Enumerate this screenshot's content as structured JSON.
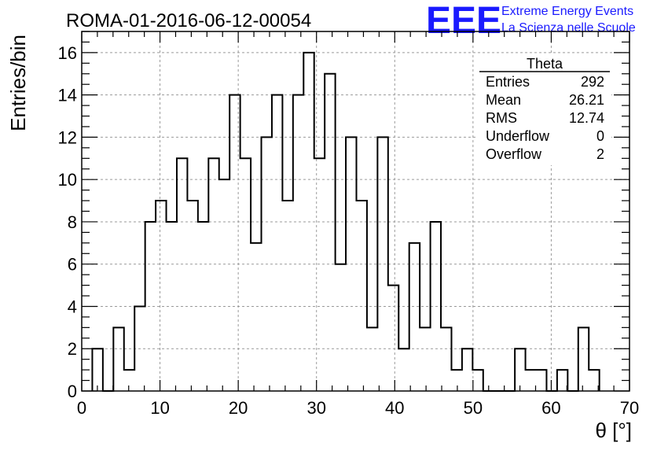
{
  "header": {
    "title": "ROMA-01-2016-06-12-00054",
    "logo": "EEE",
    "logo_line1": "Extreme Energy Events",
    "logo_line2": "La Scienza nelle Scuole"
  },
  "stats": {
    "title": "Theta",
    "rows": [
      {
        "label": "Entries",
        "value": "292"
      },
      {
        "label": "Mean",
        "value": "26.21"
      },
      {
        "label": "RMS",
        "value": "12.74"
      },
      {
        "label": "Underflow",
        "value": "0"
      },
      {
        "label": "Overflow",
        "value": "2"
      }
    ]
  },
  "chart_data": {
    "type": "bar",
    "style": "step-histogram",
    "title": "ROMA-01-2016-06-12-00054",
    "xlabel": "θ [°]",
    "ylabel": "Entries/bin",
    "xlim": [
      0,
      70
    ],
    "ylim": [
      0,
      17
    ],
    "bin_width": 1.35,
    "bin_start": 1.35,
    "xticks": [
      0,
      10,
      20,
      30,
      40,
      50,
      60,
      70
    ],
    "yticks": [
      0,
      2,
      4,
      6,
      8,
      10,
      12,
      14,
      16
    ],
    "grid": true,
    "values": [
      2,
      0,
      3,
      1,
      4,
      8,
      9,
      8,
      11,
      9,
      8,
      11,
      10,
      14,
      11,
      7,
      12,
      14,
      9,
      14,
      16,
      11,
      15,
      6,
      12,
      9,
      3,
      12,
      5,
      2,
      7,
      3,
      8,
      3,
      1,
      2,
      1,
      0,
      0,
      0,
      2,
      1,
      1,
      0,
      1,
      0,
      3,
      1
    ],
    "colors": {
      "line": "#000000",
      "grid": "#9a9a9a",
      "logo": "#1a1aff"
    }
  }
}
